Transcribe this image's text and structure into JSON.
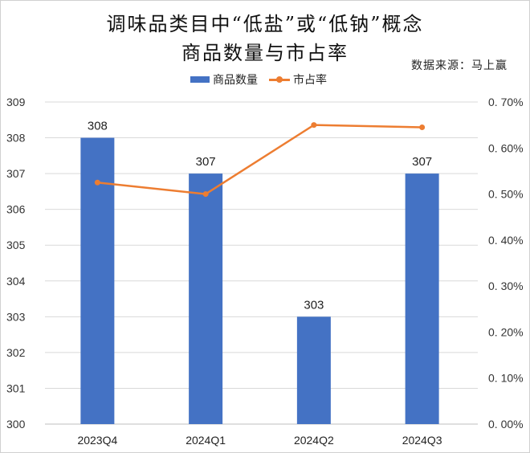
{
  "title_line1": "调味品类目中“低盐”或“低钠”概念",
  "title_line2": "商品数量与市占率",
  "source": "数据来源：马上赢",
  "legend": [
    {
      "label": "商品数量",
      "type": "bar",
      "color": "#4472C4"
    },
    {
      "label": "市占率",
      "type": "line",
      "color": "#ED7D31"
    }
  ],
  "colors": {
    "bar": "#4472C4",
    "line": "#ED7D31",
    "grid": "#D9D9D9",
    "axis_text": "#333333"
  },
  "chart_data": {
    "type": "bar+line",
    "title": "调味品类目中“低盐”或“低钠”概念商品数量与市占率",
    "categories": [
      "2023Q4",
      "2024Q1",
      "2024Q2",
      "2024Q3"
    ],
    "series": [
      {
        "name": "商品数量",
        "type": "bar",
        "axis": "left",
        "values": [
          308,
          307,
          303,
          307
        ],
        "data_labels": [
          "308",
          "307",
          "303",
          "307"
        ]
      },
      {
        "name": "市占率",
        "type": "line",
        "axis": "right",
        "values": [
          0.525,
          0.5,
          0.65,
          0.645
        ],
        "unit": "%"
      }
    ],
    "left_axis": {
      "min": 300,
      "max": 309,
      "step": 1,
      "ticks": [
        "300",
        "301",
        "302",
        "303",
        "304",
        "305",
        "306",
        "307",
        "308",
        "309"
      ]
    },
    "right_axis": {
      "min": 0.0,
      "max": 0.7,
      "step": 0.1,
      "ticks": [
        "0.00%",
        "0.10%",
        "0.20%",
        "0.30%",
        "0.40%",
        "0.50%",
        "0.60%",
        "0.70%"
      ]
    },
    "xlabel": "",
    "ylabel": "",
    "grid": true,
    "legend_position": "top"
  }
}
